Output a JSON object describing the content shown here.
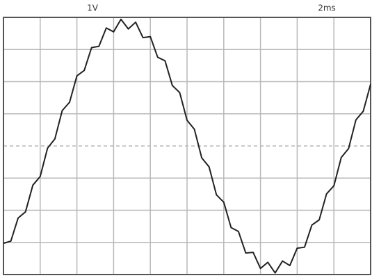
{
  "chart_data": {
    "type": "line",
    "annotations": [
      "1V",
      "2ms"
    ],
    "x": [
      0,
      0.4,
      0.8,
      1.2,
      1.6,
      2,
      2.4,
      2.8,
      3.2,
      3.6,
      4,
      4.4,
      4.8,
      5.2,
      5.6,
      6,
      6.4,
      6.8,
      7.2,
      7.6,
      8,
      8.4,
      8.8,
      9.2,
      9.6,
      10,
      10.4,
      10.8,
      11.2,
      11.6,
      12,
      12.4,
      12.8,
      13.2,
      13.6,
      14,
      14.4,
      14.8,
      15.2,
      15.6,
      16,
      16.4,
      16.8,
      17.2,
      17.6,
      18,
      18.4,
      18.8,
      19.2,
      19.6,
      20
    ],
    "series": [
      {
        "color": "#222222",
        "values": [
          -3.03,
          -2.96,
          -2.24,
          -2.05,
          -1.22,
          -0.95,
          -0.07,
          0.22,
          1.1,
          1.36,
          2.18,
          2.35,
          3.06,
          3.1,
          3.67,
          3.55,
          3.94,
          3.64,
          3.85,
          3.37,
          3.4,
          2.76,
          2.65,
          1.88,
          1.66,
          0.8,
          0.52,
          -0.37,
          -0.65,
          -1.52,
          -1.75,
          -2.54,
          -2.66,
          -3.33,
          -3.31,
          -3.81,
          -3.62,
          -3.95,
          -3.58,
          -3.72,
          -3.18,
          -3.15,
          -2.46,
          -2.3,
          -1.49,
          -1.24,
          -0.36,
          -0.08,
          0.81,
          1.08,
          1.92
        ]
      }
    ],
    "xlim": [
      0,
      20
    ],
    "ylim": [
      -4,
      4
    ],
    "xticks": [
      0,
      2,
      4,
      6,
      8,
      10,
      12,
      14,
      16,
      18,
      20
    ],
    "yticks": [
      -4,
      -3,
      -2,
      -1,
      0,
      1,
      2,
      3,
      4
    ],
    "grid": true
  }
}
